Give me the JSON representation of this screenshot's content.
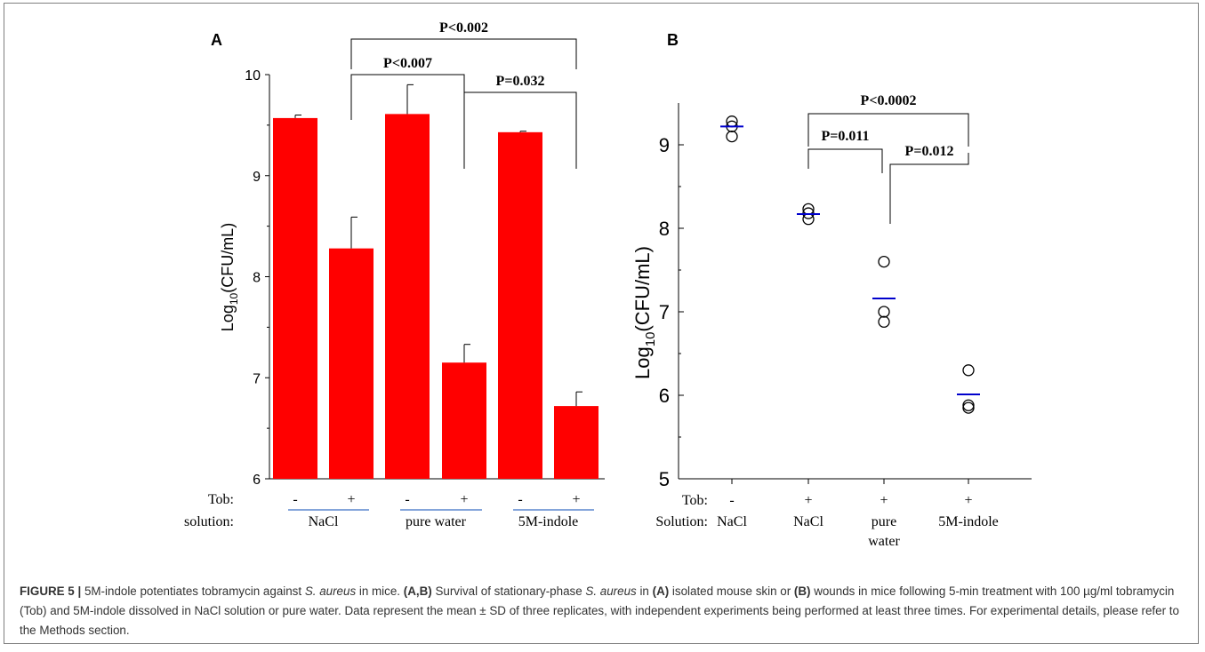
{
  "chart_data": [
    {
      "panel": "A",
      "type": "bar",
      "ylabel_main": "Log",
      "ylabel_sub": "10",
      "ylabel_rest": "(CFU/mL)",
      "ylim": [
        6,
        10
      ],
      "yticks": [
        "6",
        "7",
        "8",
        "9",
        "10"
      ],
      "bar_color": "#ff0000",
      "values": [
        9.57,
        8.28,
        9.61,
        7.15,
        9.43,
        6.72
      ],
      "errors": [
        0.03,
        0.31,
        0.29,
        0.18,
        0.01,
        0.14
      ],
      "row_labels": [
        "Tob:",
        "solution:"
      ],
      "tob": [
        "-",
        "+",
        "-",
        "+",
        "-",
        "+"
      ],
      "solutions": [
        "NaCl",
        "pure water",
        "5M-indole"
      ],
      "significance": [
        {
          "label": "P<0.002",
          "from": 1,
          "to": 5
        },
        {
          "label": "P<0.007",
          "from": 1,
          "to": 3
        },
        {
          "label": "P=0.032",
          "from": 3,
          "to": 5
        }
      ]
    },
    {
      "panel": "B",
      "type": "scatter",
      "ylabel_main": "Log",
      "ylabel_sub": "10",
      "ylabel_rest": "(CFU/mL)",
      "ylim": [
        5,
        9.5
      ],
      "yticks": [
        "5",
        "6",
        "7",
        "8",
        "9"
      ],
      "mean_color": "#0000cc",
      "groups": [
        {
          "tob": "-",
          "solution": "NaCl",
          "points": [
            9.28,
            9.22,
            9.1
          ],
          "mean": 9.22
        },
        {
          "tob": "+",
          "solution": "NaCl",
          "points": [
            8.23,
            8.18,
            8.11
          ],
          "mean": 8.17
        },
        {
          "tob": "+",
          "solution": "pure\nwater",
          "points": [
            7.6,
            7.0,
            6.88
          ],
          "mean": 7.16
        },
        {
          "tob": "+",
          "solution": "5M-indole",
          "points": [
            6.3,
            5.88,
            5.85
          ],
          "mean": 6.01
        }
      ],
      "row_labels": [
        "Tob:",
        "Solution:"
      ],
      "significance": [
        {
          "label": "P<0.0002",
          "from": 1,
          "to": 3
        },
        {
          "label": "P=0.011",
          "from": 1,
          "to": 2
        },
        {
          "label": "P=0.012",
          "from": 2,
          "to": 3
        }
      ]
    }
  ],
  "panel_labels": [
    "A",
    "B"
  ],
  "caption": {
    "figure_label": "FIGURE 5 |",
    "segments": [
      {
        "t": " 5M-indole potentiates tobramycin against ",
        "s": "n"
      },
      {
        "t": "S. aureus",
        "s": "i"
      },
      {
        "t": " in mice. ",
        "s": "n"
      },
      {
        "t": "(A,B)",
        "s": "b"
      },
      {
        "t": " Survival of stationary-phase ",
        "s": "n"
      },
      {
        "t": "S. aureus",
        "s": "i"
      },
      {
        "t": " in ",
        "s": "n"
      },
      {
        "t": "(A)",
        "s": "b"
      },
      {
        "t": " isolated mouse skin or ",
        "s": "n"
      },
      {
        "t": "(B)",
        "s": "b"
      },
      {
        "t": " wounds in mice following 5-min treatment with 100 µg/ml tobramycin (Tob) and 5M-indole dissolved in NaCl solution or pure water. Data represent the mean ± SD of three replicates, with independent experiments being performed at least three times. For experimental details, please refer to the Methods section.",
        "s": "n"
      }
    ]
  }
}
